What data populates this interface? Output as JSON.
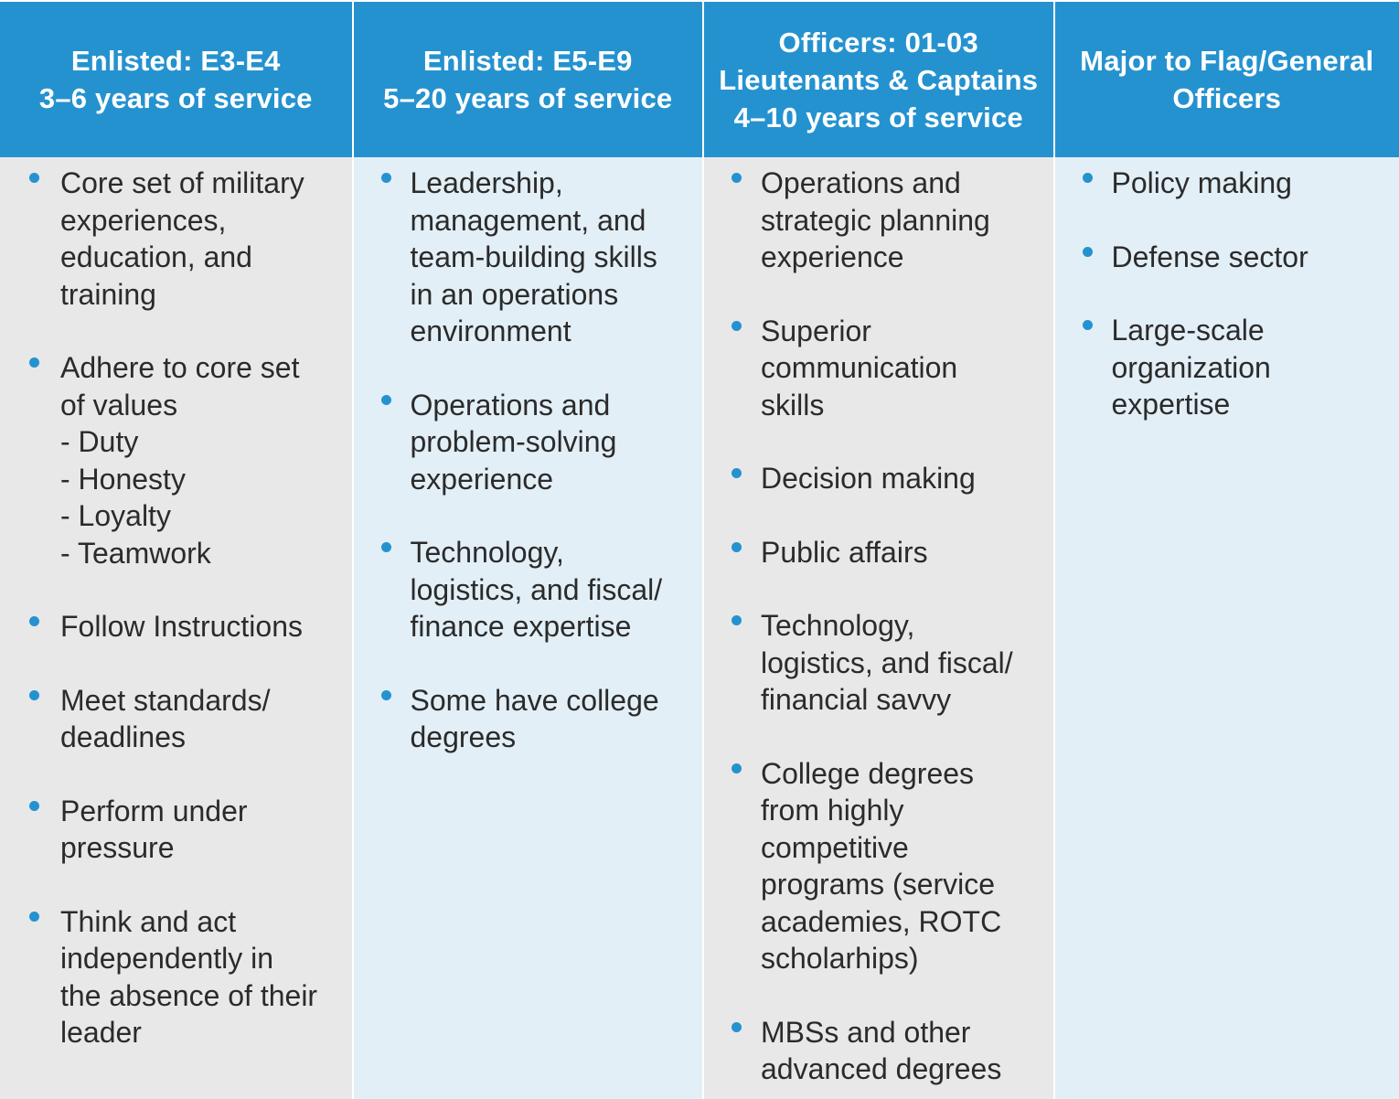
{
  "colors": {
    "header_bg": "#2592d0",
    "header_text": "#ffffff",
    "body_gray": "#e8e8e8",
    "body_light_blue": "#e2eff6",
    "bullet": "#2592d0",
    "body_text": "#2b2b2b"
  },
  "columns": [
    {
      "header": [
        "Enlisted: E3-E4",
        "3–6 years of service"
      ],
      "items": [
        [
          "Core set of military",
          "experiences,",
          "education, and",
          "training"
        ],
        [
          "Adhere to core set",
          "of values",
          "- Duty",
          "- Honesty",
          "- Loyalty",
          "- Teamwork"
        ],
        [
          "Follow Instructions"
        ],
        [
          "Meet standards/",
          "deadlines"
        ],
        [
          "Perform under",
          "pressure"
        ],
        [
          "Think and act",
          "independently in",
          "the absence of their",
          "leader"
        ]
      ]
    },
    {
      "header": [
        "Enlisted: E5-E9",
        "5–20 years of service"
      ],
      "items": [
        [
          "Leadership,",
          "management, and",
          "team-building skills",
          "in an operations",
          "environment"
        ],
        [
          "Operations and",
          "problem-solving",
          "experience"
        ],
        [
          "Technology,",
          "logistics, and fiscal/",
          "finance expertise"
        ],
        [
          "Some have college",
          "degrees"
        ]
      ]
    },
    {
      "header": [
        "Officers: 01-03",
        "Lieutenants & Captains",
        "4–10 years of service"
      ],
      "items": [
        [
          "Operations and",
          "strategic planning",
          "experience"
        ],
        [
          "Superior",
          "communication",
          "skills"
        ],
        [
          "Decision making"
        ],
        [
          "Public  affairs"
        ],
        [
          "Technology,",
          "logistics, and fiscal/",
          "financial savvy"
        ],
        [
          "College degrees",
          "from highly",
          "competitive",
          "programs (service",
          "academies, ROTC",
          "scholarhips)"
        ],
        [
          "MBSs and other",
          "advanced degrees"
        ]
      ]
    },
    {
      "header": [
        "Major to Flag/General",
        "Officers"
      ],
      "items": [
        [
          "Policy making"
        ],
        [
          "Defense sector"
        ],
        [
          "Large-scale",
          "organization",
          "expertise"
        ]
      ]
    }
  ]
}
